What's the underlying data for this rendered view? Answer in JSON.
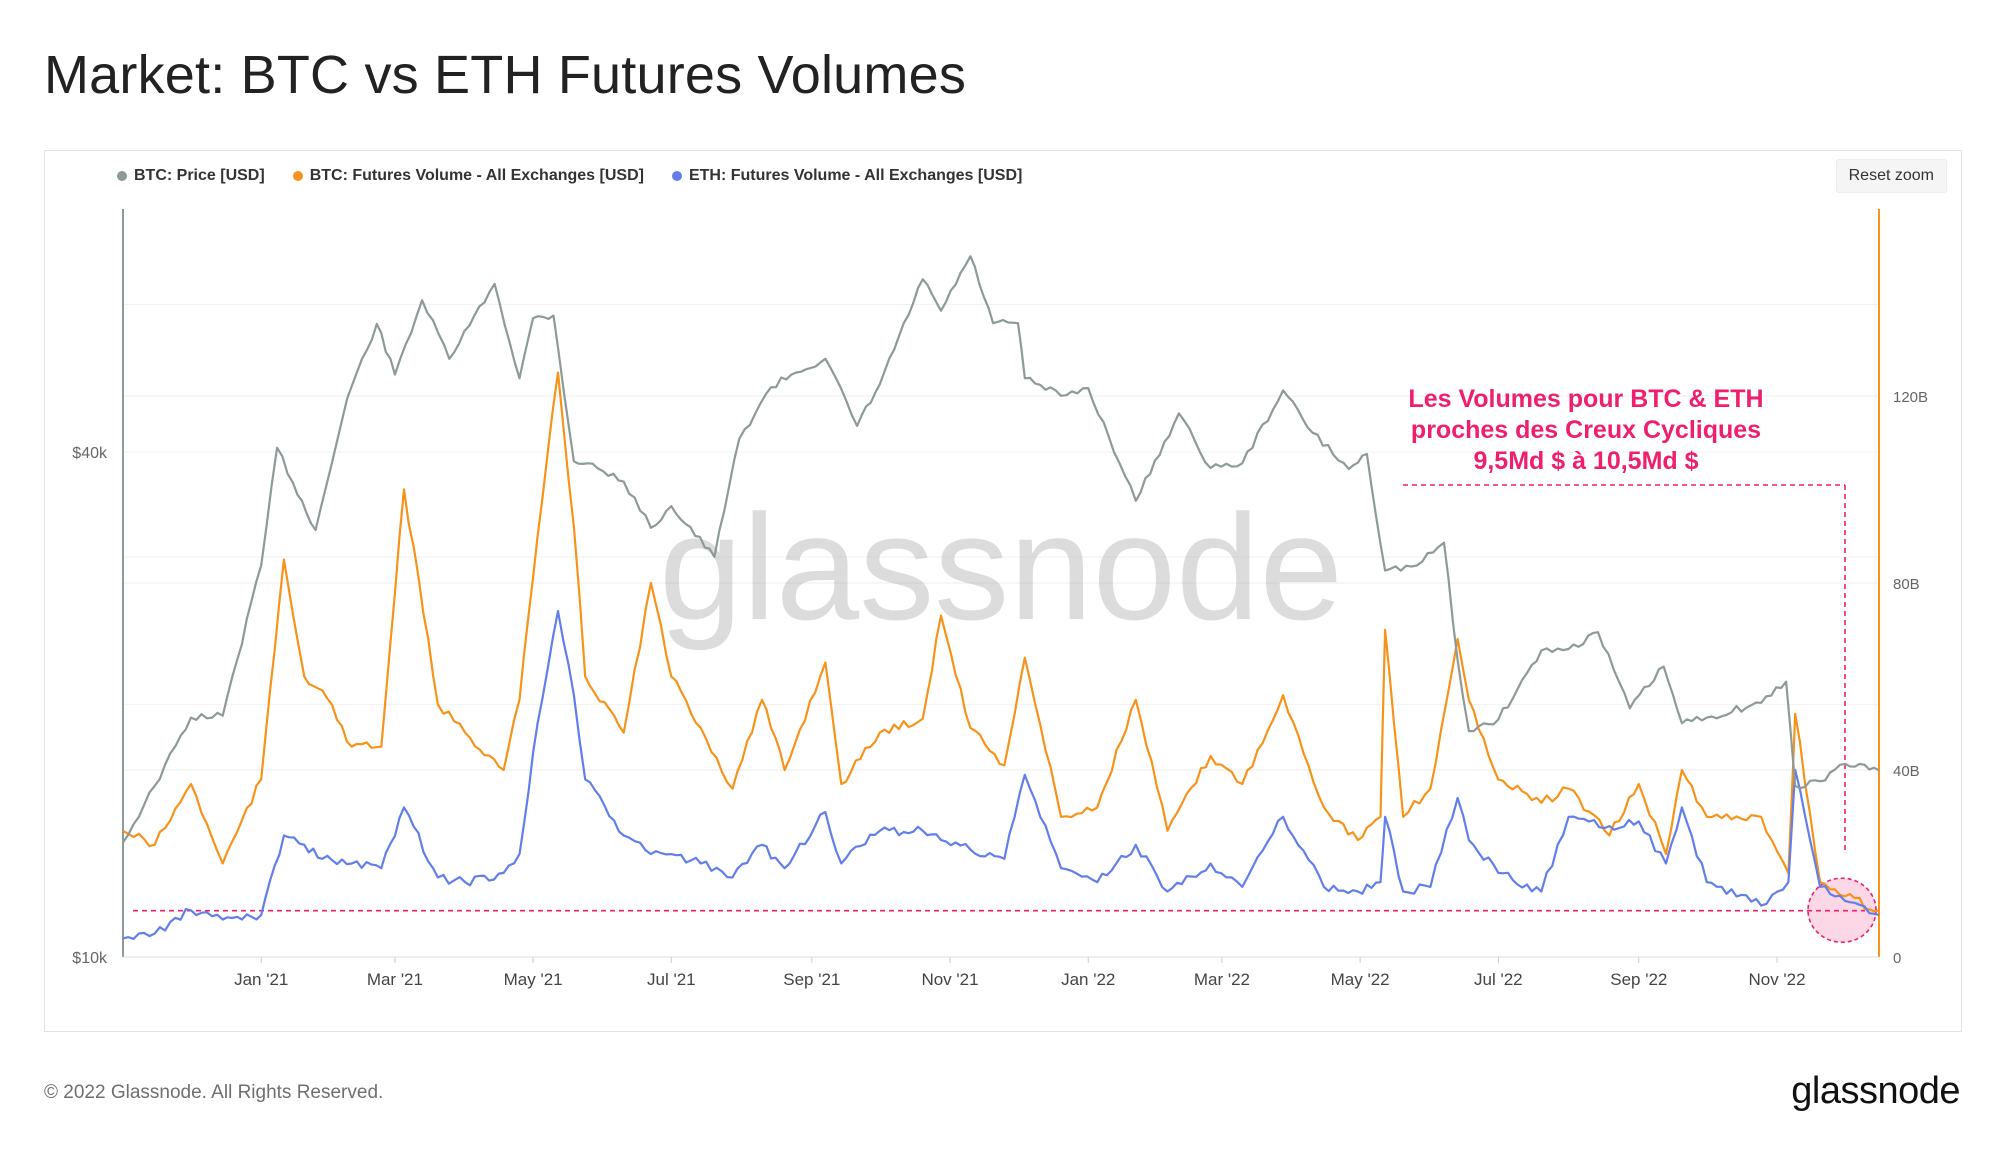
{
  "page": {
    "title": "Market: BTC vs ETH Futures Volumes"
  },
  "legend": [
    {
      "label": "BTC: Price [USD]",
      "color": "#8d9a99"
    },
    {
      "label": "BTC: Futures Volume - All Exchanges [USD]",
      "color": "#f7931a"
    },
    {
      "label": "ETH: Futures Volume - All Exchanges [USD]",
      "color": "#627eea"
    }
  ],
  "controls": {
    "reset_zoom": "Reset zoom"
  },
  "watermark": "glassnode",
  "annotation": {
    "lines": [
      "Les Volumes pour BTC & ETH",
      "proches des Creux Cycliques",
      "9,5Md $ à 10,5Md $"
    ],
    "color": "#ee1f6f"
  },
  "footer": {
    "copyright": "© 2022 Glassnode. All Rights Reserved.",
    "logo": "glassnode"
  },
  "chart_data": {
    "type": "line",
    "x_axis": {
      "labels": [
        "Jan '21",
        "Mar '21",
        "May '21",
        "Jul '21",
        "Sep '21",
        "Nov '21",
        "Jan '22",
        "Mar '22",
        "May '22",
        "Jul '22",
        "Sep '22",
        "Nov '22"
      ],
      "range": [
        "2020-11-01",
        "2022-12-16"
      ]
    },
    "y_left": {
      "scale": "log",
      "tick_labels": [
        "$10k",
        "$40k"
      ],
      "tick_values": [
        10000,
        40000
      ],
      "range": [
        10000,
        78000
      ],
      "color": "#8d9a99"
    },
    "y_right": {
      "scale": "linear",
      "tick_labels": [
        "0",
        "40B",
        "80B",
        "120B"
      ],
      "tick_values": [
        0,
        40,
        80,
        120
      ],
      "unit": "B",
      "range": [
        0,
        160
      ],
      "color": "#f7931a"
    },
    "grid": true,
    "legend_position": "top-left",
    "series": [
      {
        "name": "BTC: Price [USD]",
        "axis": "left",
        "color": "#8d9a99",
        "x": [
          "2020-11-01",
          "2020-11-15",
          "2020-12-01",
          "2020-12-15",
          "2021-01-01",
          "2021-01-08",
          "2021-01-15",
          "2021-01-25",
          "2021-02-08",
          "2021-02-21",
          "2021-03-01",
          "2021-03-13",
          "2021-03-25",
          "2021-04-14",
          "2021-04-25",
          "2021-05-01",
          "2021-05-10",
          "2021-05-19",
          "2021-05-25",
          "2021-06-10",
          "2021-06-22",
          "2021-07-01",
          "2021-07-20",
          "2021-07-31",
          "2021-08-14",
          "2021-08-23",
          "2021-09-07",
          "2021-09-21",
          "2021-10-01",
          "2021-10-20",
          "2021-10-28",
          "2021-11-10",
          "2021-11-20",
          "2021-12-01",
          "2021-12-04",
          "2021-12-20",
          "2022-01-01",
          "2022-01-10",
          "2022-01-22",
          "2022-02-10",
          "2022-02-24",
          "2022-03-10",
          "2022-03-28",
          "2022-04-10",
          "2022-04-26",
          "2022-05-04",
          "2022-05-12",
          "2022-05-26",
          "2022-06-07",
          "2022-06-13",
          "2022-06-18",
          "2022-07-01",
          "2022-07-20",
          "2022-08-01",
          "2022-08-14",
          "2022-08-28",
          "2022-09-12",
          "2022-09-20",
          "2022-10-01",
          "2022-10-25",
          "2022-11-05",
          "2022-11-09",
          "2022-11-20",
          "2022-12-01",
          "2022-12-16"
        ],
        "values": [
          13700,
          16000,
          19300,
          19400,
          29300,
          40500,
          36800,
          32300,
          46400,
          56900,
          49500,
          60700,
          51700,
          63500,
          49000,
          57800,
          58200,
          39000,
          38800,
          36900,
          32500,
          34500,
          30000,
          41500,
          47800,
          49500,
          51700,
          43000,
          48200,
          64300,
          59000,
          68500,
          57000,
          57000,
          49000,
          46700,
          47700,
          41800,
          35000,
          44500,
          38300,
          38800,
          47400,
          42200,
          38200,
          39800,
          28900,
          29300,
          31200,
          22600,
          18600,
          19200,
          23200,
          23300,
          24400,
          19800,
          22200,
          19000,
          19300,
          20100,
          21300,
          16000,
          16200,
          17000,
          16700
        ]
      },
      {
        "name": "BTC: Futures Volume - All Exchanges [USD]",
        "axis": "right",
        "color": "#f7931a",
        "x": [
          "2020-11-01",
          "2020-11-15",
          "2020-12-01",
          "2020-12-15",
          "2021-01-01",
          "2021-01-11",
          "2021-01-20",
          "2021-01-28",
          "2021-02-10",
          "2021-02-23",
          "2021-03-05",
          "2021-03-20",
          "2021-04-01",
          "2021-04-18",
          "2021-04-25",
          "2021-05-03",
          "2021-05-12",
          "2021-05-19",
          "2021-05-24",
          "2021-06-10",
          "2021-06-22",
          "2021-07-01",
          "2021-07-14",
          "2021-07-28",
          "2021-08-10",
          "2021-08-20",
          "2021-09-07",
          "2021-09-14",
          "2021-10-01",
          "2021-10-20",
          "2021-10-28",
          "2021-11-10",
          "2021-11-25",
          "2021-12-04",
          "2021-12-20",
          "2022-01-05",
          "2022-01-22",
          "2022-02-05",
          "2022-02-24",
          "2022-03-10",
          "2022-03-28",
          "2022-04-15",
          "2022-04-30",
          "2022-05-10",
          "2022-05-12",
          "2022-05-20",
          "2022-06-01",
          "2022-06-13",
          "2022-06-18",
          "2022-07-01",
          "2022-07-20",
          "2022-08-01",
          "2022-08-19",
          "2022-09-01",
          "2022-09-13",
          "2022-09-20",
          "2022-10-01",
          "2022-10-25",
          "2022-11-06",
          "2022-11-09",
          "2022-11-20",
          "2022-12-01",
          "2022-12-16"
        ],
        "values": [
          27,
          24,
          37,
          20,
          38,
          85,
          60,
          57,
          45,
          45,
          100,
          54,
          48,
          40,
          55,
          90,
          125,
          92,
          60,
          48,
          80,
          60,
          49,
          36,
          55,
          40,
          63,
          37,
          48,
          51,
          73,
          49,
          41,
          64,
          30,
          32,
          55,
          27,
          43,
          37,
          56,
          32,
          25,
          30,
          70,
          30,
          36,
          68,
          55,
          38,
          33,
          36,
          26,
          37,
          22,
          40,
          30,
          30,
          18,
          52,
          16,
          13,
          10
        ]
      },
      {
        "name": "ETH: Futures Volume - All Exchanges [USD]",
        "axis": "right",
        "color": "#627eea",
        "x": [
          "2020-11-01",
          "2020-11-15",
          "2020-12-01",
          "2020-12-15",
          "2021-01-01",
          "2021-01-11",
          "2021-01-20",
          "2021-01-28",
          "2021-02-10",
          "2021-02-23",
          "2021-03-05",
          "2021-03-20",
          "2021-04-01",
          "2021-04-18",
          "2021-04-25",
          "2021-05-03",
          "2021-05-12",
          "2021-05-19",
          "2021-05-24",
          "2021-06-10",
          "2021-06-22",
          "2021-07-01",
          "2021-07-14",
          "2021-07-28",
          "2021-08-10",
          "2021-08-20",
          "2021-09-07",
          "2021-09-14",
          "2021-10-01",
          "2021-10-20",
          "2021-10-28",
          "2021-11-10",
          "2021-11-25",
          "2021-12-04",
          "2021-12-20",
          "2022-01-05",
          "2022-01-22",
          "2022-02-05",
          "2022-02-24",
          "2022-03-10",
          "2022-03-28",
          "2022-04-15",
          "2022-04-30",
          "2022-05-10",
          "2022-05-12",
          "2022-05-20",
          "2022-06-01",
          "2022-06-13",
          "2022-06-18",
          "2022-07-01",
          "2022-07-20",
          "2022-08-01",
          "2022-08-19",
          "2022-09-01",
          "2022-09-13",
          "2022-09-20",
          "2022-10-01",
          "2022-10-25",
          "2022-11-06",
          "2022-11-09",
          "2022-11-20",
          "2022-12-01",
          "2022-12-16"
        ],
        "values": [
          4,
          5,
          10,
          8,
          9,
          26,
          24,
          21,
          20,
          19,
          32,
          17,
          16,
          18,
          22,
          50,
          74,
          56,
          38,
          26,
          22,
          22,
          20,
          17,
          24,
          19,
          31,
          20,
          27,
          27,
          25,
          23,
          21,
          39,
          19,
          16,
          24,
          14,
          20,
          15,
          30,
          15,
          14,
          16,
          30,
          14,
          15,
          34,
          25,
          18,
          14,
          30,
          28,
          29,
          20,
          32,
          16,
          11,
          16,
          40,
          15,
          12,
          9
        ]
      }
    ]
  }
}
